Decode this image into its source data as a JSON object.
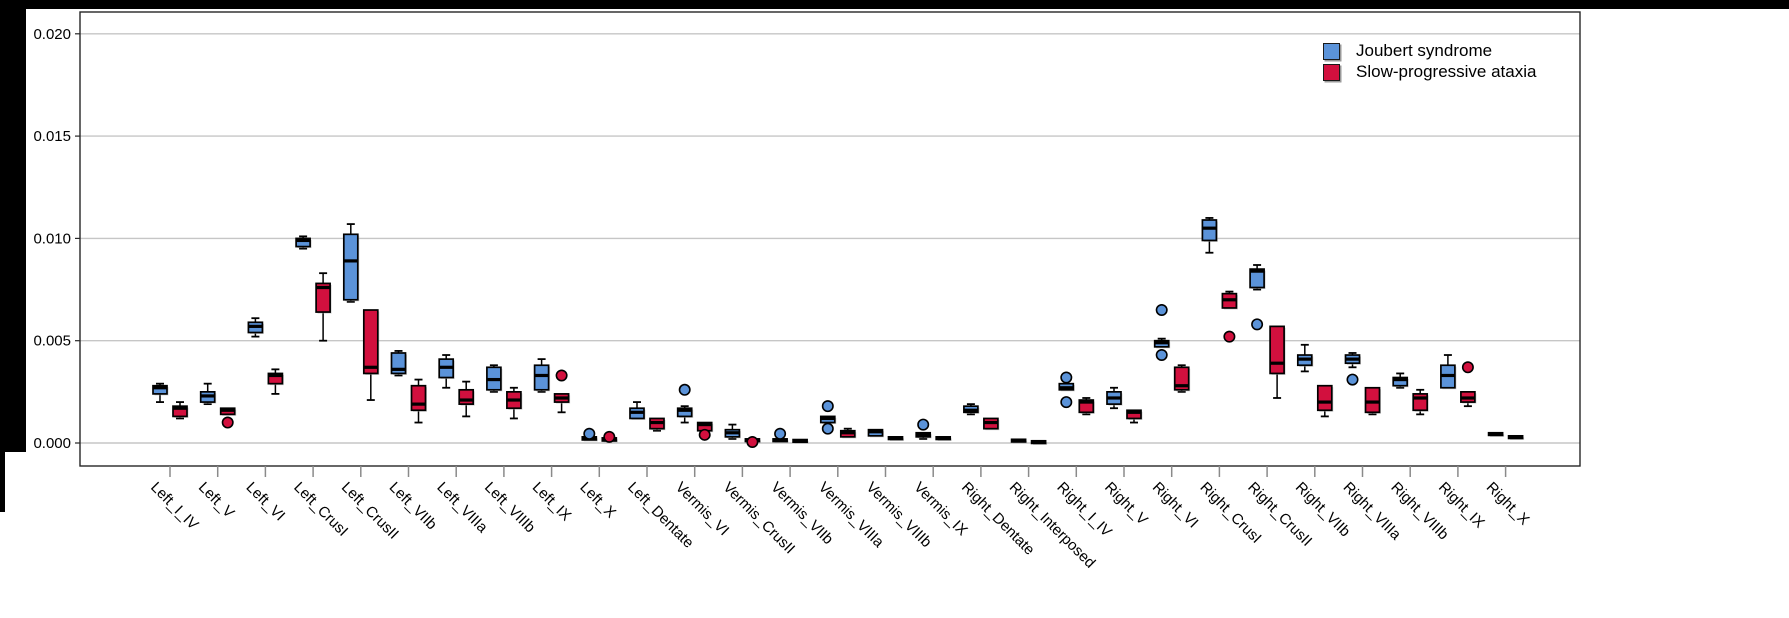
{
  "legend": {
    "items": [
      {
        "label": "Joubert syndrome",
        "color": "#5b93d9"
      },
      {
        "label": "Slow-progressive ataxia",
        "color": "#d2103e"
      }
    ]
  },
  "colors": {
    "joubert_blue": "#5b93d9",
    "ataxia_red": "#d2103e",
    "gridline": "#c6c6c6",
    "frame": "#262626",
    "tick": "#8a8a8a",
    "box_shadow": "#aaaaaa",
    "border_bars": "#000000"
  },
  "chart_data": {
    "type": "boxplot",
    "title": "",
    "xlabel": "",
    "ylabel": "",
    "grid": "horizontal",
    "legend_position": "top-right",
    "ylim": [
      -0.0011,
      0.0211
    ],
    "yticks": [
      0.0,
      0.005,
      0.01,
      0.015,
      0.02
    ],
    "ytick_labels": [
      "0.000",
      "0.005",
      "0.010",
      "0.015",
      "0.020"
    ],
    "categories": [
      "Left_I_IV",
      "Left_V",
      "Left_VI",
      "Left_CrusI",
      "Left_CrusII",
      "Left_VIIb",
      "Left_VIIIa",
      "Left_VIIIb",
      "Left_IX",
      "Left_X",
      "Left_Dentate",
      "Vermis_VI",
      "Vermis_CrusII",
      "Vermis_VIIb",
      "Vermis_VIIIa",
      "Vermis_VIIIb",
      "Vermis_IX",
      "Right_Dentate",
      "Right_Interposed",
      "Right_I_IV",
      "Right_V",
      "Right_VI",
      "Right_CrusI",
      "Right_CrusII",
      "Right_VIIb",
      "Right_VIIIa",
      "Right_VIIIb",
      "Right_IX",
      "Right_X"
    ],
    "series": [
      {
        "name": "Joubert syndrome",
        "color": "#5b93d9",
        "boxes": [
          {
            "lo": 0.002,
            "q1": 0.0024,
            "med": 0.0027,
            "q3": 0.0028,
            "hi": 0.0029,
            "out": []
          },
          {
            "lo": 0.0019,
            "q1": 0.002,
            "med": 0.0023,
            "q3": 0.0025,
            "hi": 0.0029,
            "out": []
          },
          {
            "lo": 0.0052,
            "q1": 0.0054,
            "med": 0.0057,
            "q3": 0.0059,
            "hi": 0.0061,
            "out": []
          },
          {
            "lo": 0.0095,
            "q1": 0.0096,
            "med": 0.0099,
            "q3": 0.01,
            "hi": 0.0101,
            "out": []
          },
          {
            "lo": 0.0069,
            "q1": 0.007,
            "med": 0.0089,
            "q3": 0.0102,
            "hi": 0.0107,
            "out": []
          },
          {
            "lo": 0.0033,
            "q1": 0.0034,
            "med": 0.0036,
            "q3": 0.0044,
            "hi": 0.0045,
            "out": []
          },
          {
            "lo": 0.0027,
            "q1": 0.0032,
            "med": 0.0037,
            "q3": 0.0041,
            "hi": 0.0043,
            "out": []
          },
          {
            "lo": 0.0025,
            "q1": 0.0026,
            "med": 0.0031,
            "q3": 0.0037,
            "hi": 0.0038,
            "out": []
          },
          {
            "lo": 0.0025,
            "q1": 0.0026,
            "med": 0.0033,
            "q3": 0.0038,
            "hi": 0.0041,
            "out": []
          },
          {
            "lo": 0.0001,
            "q1": 0.00015,
            "med": 0.0002,
            "q3": 0.0003,
            "hi": 0.0003,
            "out": [
              0.00045
            ]
          },
          {
            "lo": 0.0012,
            "q1": 0.0012,
            "med": 0.0015,
            "q3": 0.0017,
            "hi": 0.002,
            "out": []
          },
          {
            "lo": 0.001,
            "q1": 0.0013,
            "med": 0.0016,
            "q3": 0.0017,
            "hi": 0.0018,
            "out": [
              0.0026
            ]
          },
          {
            "lo": 0.0002,
            "q1": 0.0003,
            "med": 0.0005,
            "q3": 0.00065,
            "hi": 0.0009,
            "out": []
          },
          {
            "lo": 0.0001,
            "q1": 0.0001,
            "med": 0.00015,
            "q3": 0.0002,
            "hi": 0.0002,
            "out": [
              0.00045
            ]
          },
          {
            "lo": 0.001,
            "q1": 0.001,
            "med": 0.0012,
            "q3": 0.0013,
            "hi": 0.0013,
            "out": [
              0.0018,
              0.0007
            ]
          },
          {
            "lo": 0.0003,
            "q1": 0.00035,
            "med": 0.00055,
            "q3": 0.00065,
            "hi": 0.0007,
            "out": []
          },
          {
            "lo": 0.0002,
            "q1": 0.0003,
            "med": 0.0004,
            "q3": 0.0005,
            "hi": 0.0005,
            "out": [
              0.0009
            ]
          },
          {
            "lo": 0.0014,
            "q1": 0.0015,
            "med": 0.0016,
            "q3": 0.0018,
            "hi": 0.0019,
            "out": []
          },
          {
            "lo": 8e-05,
            "q1": 0.0001,
            "med": 0.00013,
            "q3": 0.00018,
            "hi": 0.0002,
            "out": []
          },
          {
            "lo": 0.0026,
            "q1": 0.0026,
            "med": 0.0027,
            "q3": 0.0029,
            "hi": 0.0029,
            "out": [
              0.0032,
              0.002
            ]
          },
          {
            "lo": 0.0017,
            "q1": 0.0019,
            "med": 0.0022,
            "q3": 0.0025,
            "hi": 0.0027,
            "out": []
          },
          {
            "lo": 0.0047,
            "q1": 0.0047,
            "med": 0.0049,
            "q3": 0.005,
            "hi": 0.0051,
            "out": [
              0.0065,
              0.0043
            ]
          },
          {
            "lo": 0.0093,
            "q1": 0.0099,
            "med": 0.0105,
            "q3": 0.0109,
            "hi": 0.011,
            "out": []
          },
          {
            "lo": 0.0075,
            "q1": 0.0076,
            "med": 0.0084,
            "q3": 0.0085,
            "hi": 0.0087,
            "out": [
              0.0058
            ]
          },
          {
            "lo": 0.0035,
            "q1": 0.0038,
            "med": 0.0041,
            "q3": 0.0043,
            "hi": 0.0048,
            "out": []
          },
          {
            "lo": 0.0037,
            "q1": 0.0039,
            "med": 0.0041,
            "q3": 0.0043,
            "hi": 0.0044,
            "out": [
              0.0031
            ]
          },
          {
            "lo": 0.0027,
            "q1": 0.0028,
            "med": 0.0031,
            "q3": 0.0032,
            "hi": 0.0034,
            "out": []
          },
          {
            "lo": 0.0027,
            "q1": 0.0027,
            "med": 0.0033,
            "q3": 0.0038,
            "hi": 0.0043,
            "out": []
          },
          {
            "lo": 0.0004,
            "q1": 0.0004,
            "med": 0.00045,
            "q3": 0.0005,
            "hi": 0.0005,
            "out": []
          }
        ]
      },
      {
        "name": "Slow-progressive ataxia",
        "color": "#d2103e",
        "boxes": [
          {
            "lo": 0.0012,
            "q1": 0.0013,
            "med": 0.0017,
            "q3": 0.0018,
            "hi": 0.002,
            "out": []
          },
          {
            "lo": 0.0014,
            "q1": 0.0014,
            "med": 0.0016,
            "q3": 0.0017,
            "hi": 0.0017,
            "out": [
              0.001
            ]
          },
          {
            "lo": 0.0024,
            "q1": 0.0029,
            "med": 0.0033,
            "q3": 0.0034,
            "hi": 0.0036,
            "out": []
          },
          {
            "lo": 0.005,
            "q1": 0.0064,
            "med": 0.0076,
            "q3": 0.0078,
            "hi": 0.0083,
            "out": []
          },
          {
            "lo": 0.0021,
            "q1": 0.0034,
            "med": 0.0037,
            "q3": 0.0065,
            "hi": 0.0065,
            "out": []
          },
          {
            "lo": 0.001,
            "q1": 0.0016,
            "med": 0.0019,
            "q3": 0.0028,
            "hi": 0.0031,
            "out": []
          },
          {
            "lo": 0.0013,
            "q1": 0.0019,
            "med": 0.0021,
            "q3": 0.0026,
            "hi": 0.003,
            "out": []
          },
          {
            "lo": 0.0012,
            "q1": 0.0017,
            "med": 0.0021,
            "q3": 0.0025,
            "hi": 0.0027,
            "out": []
          },
          {
            "lo": 0.0015,
            "q1": 0.002,
            "med": 0.0022,
            "q3": 0.0024,
            "hi": 0.0024,
            "out": [
              0.0033
            ]
          },
          {
            "lo": 5e-05,
            "q1": 0.0001,
            "med": 0.00015,
            "q3": 0.00025,
            "hi": 0.00025,
            "out": [
              0.0003
            ]
          },
          {
            "lo": 0.0006,
            "q1": 0.0007,
            "med": 0.001,
            "q3": 0.0012,
            "hi": 0.0012,
            "out": []
          },
          {
            "lo": 0.0005,
            "q1": 0.0006,
            "med": 0.0009,
            "q3": 0.001,
            "hi": 0.001,
            "out": [
              0.0004
            ]
          },
          {
            "lo": 5e-05,
            "q1": 0.0001,
            "med": 0.00015,
            "q3": 0.0002,
            "hi": 0.0002,
            "out": [
              5e-05
            ]
          },
          {
            "lo": 5e-05,
            "q1": 8e-05,
            "med": 0.0001,
            "q3": 0.00012,
            "hi": 0.00012,
            "out": []
          },
          {
            "lo": 0.0003,
            "q1": 0.0003,
            "med": 0.0005,
            "q3": 0.0006,
            "hi": 0.0007,
            "out": []
          },
          {
            "lo": 0.0002,
            "q1": 0.0002,
            "med": 0.00025,
            "q3": 0.0003,
            "hi": 0.0003,
            "out": []
          },
          {
            "lo": 0.0002,
            "q1": 0.0002,
            "med": 0.00025,
            "q3": 0.0003,
            "hi": 0.0003,
            "out": []
          },
          {
            "lo": 0.0007,
            "q1": 0.0007,
            "med": 0.001,
            "q3": 0.0012,
            "hi": 0.0012,
            "out": []
          },
          {
            "lo": 4e-05,
            "q1": 4e-05,
            "med": 7e-05,
            "q3": 0.0001,
            "hi": 0.0001,
            "out": []
          },
          {
            "lo": 0.0014,
            "q1": 0.0015,
            "med": 0.002,
            "q3": 0.0021,
            "hi": 0.0022,
            "out": []
          },
          {
            "lo": 0.001,
            "q1": 0.0012,
            "med": 0.0015,
            "q3": 0.0016,
            "hi": 0.0016,
            "out": []
          },
          {
            "lo": 0.0025,
            "q1": 0.0026,
            "med": 0.0028,
            "q3": 0.0037,
            "hi": 0.0038,
            "out": []
          },
          {
            "lo": 0.0066,
            "q1": 0.0066,
            "med": 0.007,
            "q3": 0.0073,
            "hi": 0.0074,
            "out": [
              0.0052
            ]
          },
          {
            "lo": 0.0022,
            "q1": 0.0034,
            "med": 0.0039,
            "q3": 0.0057,
            "hi": 0.0057,
            "out": []
          },
          {
            "lo": 0.0013,
            "q1": 0.0016,
            "med": 0.002,
            "q3": 0.0028,
            "hi": 0.0028,
            "out": []
          },
          {
            "lo": 0.0014,
            "q1": 0.0015,
            "med": 0.002,
            "q3": 0.0027,
            "hi": 0.0027,
            "out": []
          },
          {
            "lo": 0.0014,
            "q1": 0.0016,
            "med": 0.0022,
            "q3": 0.0024,
            "hi": 0.0026,
            "out": []
          },
          {
            "lo": 0.0018,
            "q1": 0.002,
            "med": 0.0022,
            "q3": 0.0025,
            "hi": 0.0025,
            "out": [
              0.0037
            ]
          },
          {
            "lo": 0.00025,
            "q1": 0.00025,
            "med": 0.0003,
            "q3": 0.00035,
            "hi": 0.00035,
            "out": []
          }
        ]
      }
    ]
  }
}
